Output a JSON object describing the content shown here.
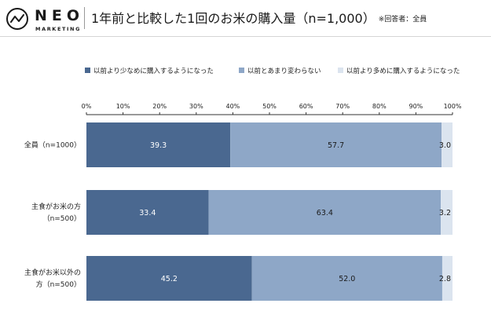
{
  "brand": {
    "name": "NEO",
    "sub": "MARKETING"
  },
  "title": "1年前と比較した1回のお米の購入量（n=1,000）",
  "title_note": "※回答者：全員",
  "chart_data": {
    "type": "bar",
    "orientation": "horizontal",
    "stacked": "percent",
    "categories": [
      [
        "全員（n=1000）"
      ],
      [
        "主食がお米の方",
        "（n=500）"
      ],
      [
        "主食がお米以外の",
        "方（n=500）"
      ]
    ],
    "series": [
      {
        "name": "以前より少なめに購入するようになった",
        "color": "#4a6890",
        "label_color": "#ffffff",
        "values": [
          39.3,
          33.4,
          45.2
        ]
      },
      {
        "name": "以前とあまり変わらない",
        "color": "#8ea7c7",
        "label_color": "#1a1a1a",
        "values": [
          57.7,
          63.4,
          52.0
        ]
      },
      {
        "name": "以前より多めに購入するようになった",
        "color": "#dbe4ef",
        "label_color": "#1a1a1a",
        "values": [
          3.0,
          3.2,
          2.8
        ]
      }
    ],
    "xticks": [
      "0%",
      "10%",
      "20%",
      "30%",
      "40%",
      "50%",
      "60%",
      "70%",
      "80%",
      "90%",
      "100%"
    ],
    "xlim": [
      0,
      100
    ],
    "legend": "top",
    "grid": false
  }
}
